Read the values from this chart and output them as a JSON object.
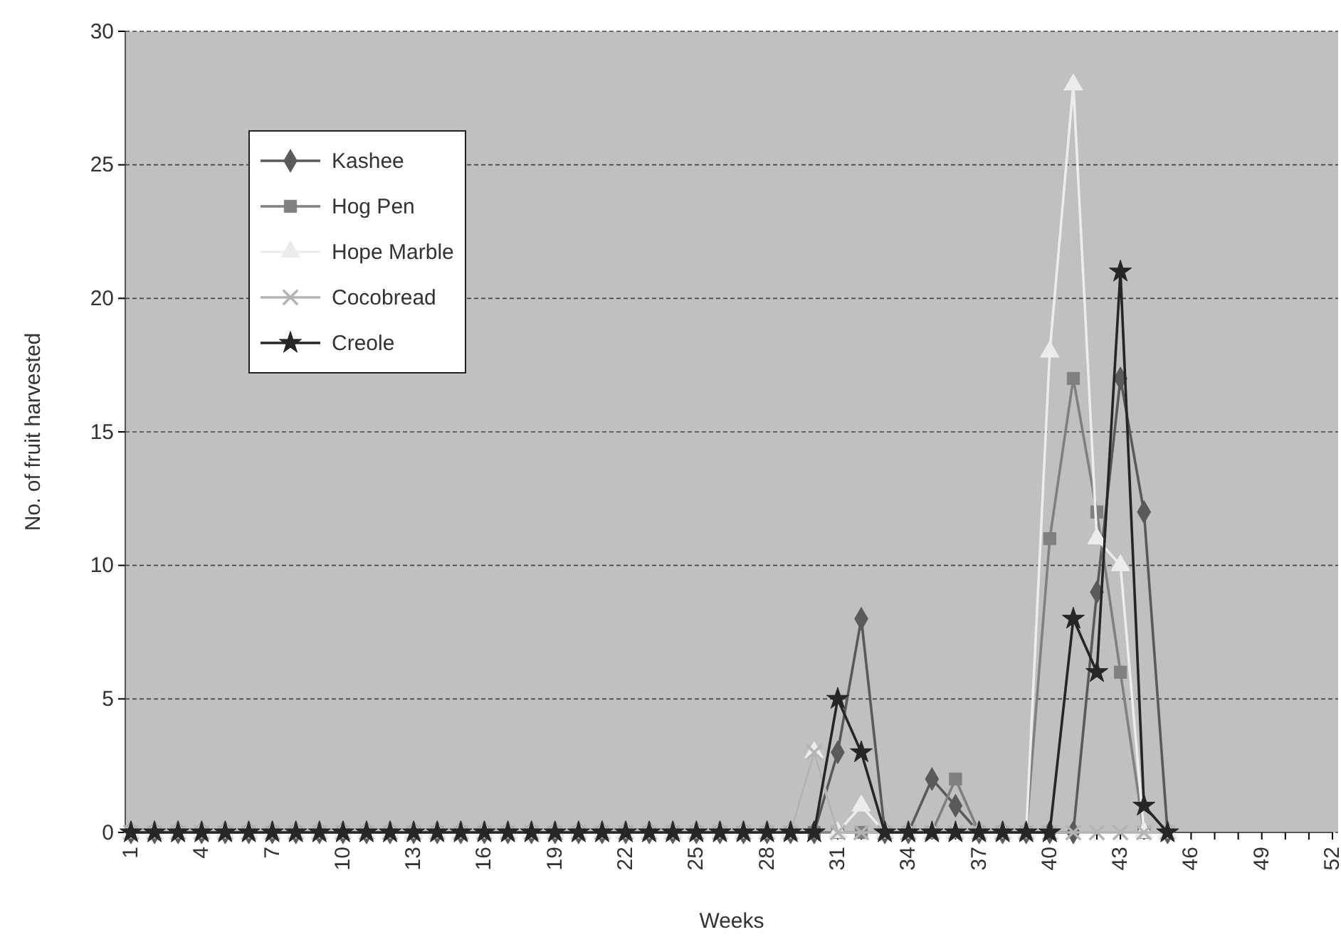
{
  "chart_data": {
    "type": "line",
    "xlabel": "Weeks",
    "ylabel": "No. of fruit harvested",
    "categories": [
      "1",
      null,
      null,
      "4",
      null,
      null,
      "7",
      null,
      null,
      "10",
      null,
      null,
      "13",
      null,
      null,
      "16",
      null,
      null,
      "19",
      null,
      null,
      "22",
      null,
      null,
      "25",
      null,
      null,
      "28",
      null,
      null,
      "31",
      null,
      null,
      "34",
      null,
      null,
      "37",
      null,
      null,
      "40",
      null,
      null,
      "43",
      null,
      null,
      "46",
      null,
      null,
      "49",
      null,
      null,
      "52"
    ],
    "series": [
      {
        "name": "Kashee",
        "color": "#5a5a5a",
        "marker": "diamond",
        "values": [
          0,
          0,
          0,
          0,
          0,
          0,
          0,
          0,
          0,
          0,
          0,
          0,
          0,
          0,
          0,
          0,
          0,
          0,
          0,
          0,
          0,
          0,
          0,
          0,
          0,
          0,
          0,
          0,
          0,
          0,
          3,
          8,
          0,
          0,
          2,
          1,
          0,
          0,
          0,
          0,
          0,
          9,
          17,
          12,
          0,
          null,
          null,
          null,
          null,
          null,
          null,
          null
        ]
      },
      {
        "name": "Hog Pen",
        "color": "#808080",
        "marker": "square",
        "values": [
          0,
          0,
          0,
          0,
          0,
          0,
          0,
          0,
          0,
          0,
          0,
          0,
          0,
          0,
          0,
          0,
          0,
          0,
          0,
          0,
          0,
          0,
          0,
          0,
          0,
          0,
          0,
          0,
          0,
          0,
          0,
          0,
          0,
          0,
          0,
          2,
          0,
          0,
          0,
          11,
          17,
          12,
          6,
          0,
          0,
          null,
          null,
          null,
          null,
          null,
          null,
          null
        ]
      },
      {
        "name": "Hope Marble",
        "color": "#ececec",
        "marker": "triangle",
        "values": [
          0,
          0,
          0,
          0,
          0,
          0,
          0,
          0,
          0,
          0,
          0,
          0,
          0,
          0,
          0,
          0,
          0,
          0,
          0,
          0,
          0,
          0,
          0,
          0,
          0,
          0,
          0,
          0,
          0,
          3,
          0,
          1,
          0,
          0,
          0,
          0,
          0,
          0,
          0,
          18,
          28,
          11,
          10,
          0,
          0,
          null,
          null,
          null,
          null,
          null,
          null,
          null
        ]
      },
      {
        "name": "Cocobread",
        "color": "#b4b4b4",
        "marker": "cross",
        "values": [
          0,
          0,
          0,
          0,
          0,
          0,
          0,
          0,
          0,
          0,
          0,
          0,
          0,
          0,
          0,
          0,
          0,
          0,
          0,
          0,
          0,
          0,
          0,
          0,
          0,
          0,
          0,
          0,
          0,
          3,
          0,
          0,
          0,
          0,
          0,
          0,
          0,
          0,
          0,
          0,
          0,
          0,
          0,
          0,
          0,
          null,
          null,
          null,
          null,
          null,
          null,
          null
        ]
      },
      {
        "name": "Creole",
        "color": "#262626",
        "marker": "star",
        "values": [
          0,
          0,
          0,
          0,
          0,
          0,
          0,
          0,
          0,
          0,
          0,
          0,
          0,
          0,
          0,
          0,
          0,
          0,
          0,
          0,
          0,
          0,
          0,
          0,
          0,
          0,
          0,
          0,
          0,
          0,
          5,
          3,
          0,
          0,
          0,
          0,
          0,
          0,
          0,
          0,
          8,
          6,
          21,
          1,
          0,
          null,
          null,
          null,
          null,
          null,
          null,
          null
        ]
      }
    ],
    "ylim": [
      0,
      30
    ],
    "yticks": [
      0,
      5,
      10,
      15,
      20,
      25,
      30
    ],
    "grid": "y",
    "legend": "top left"
  }
}
